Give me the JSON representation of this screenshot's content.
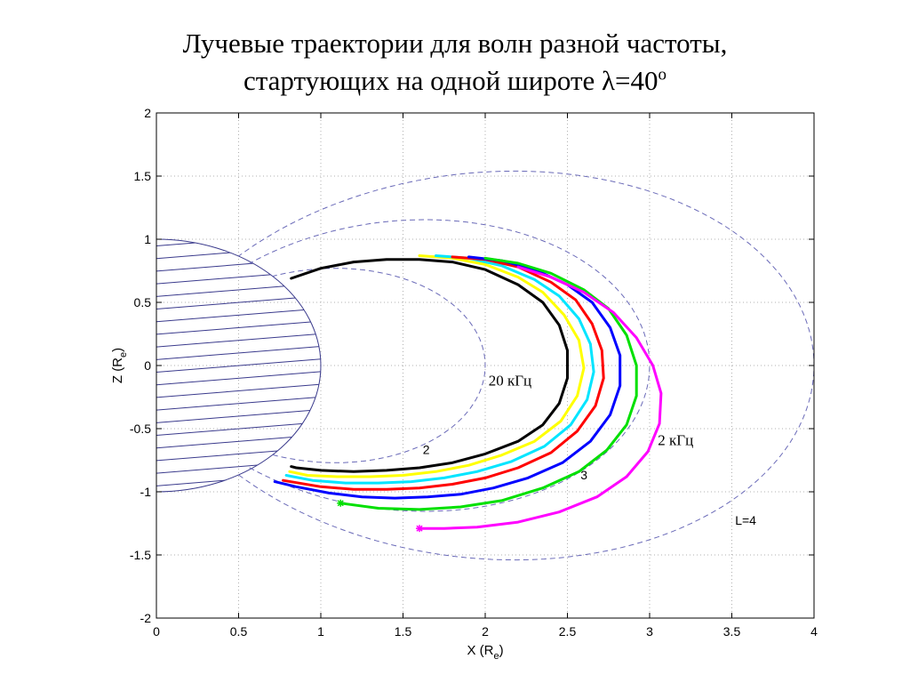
{
  "title": {
    "line1": "Лучевые траектории для волн разной частоты,",
    "line2_prefix": "стартующих на одной широте ",
    "lambda": "λ",
    "line2_value": "=40",
    "degree": "о"
  },
  "chart_data": {
    "type": "line",
    "xlabel": "X (R",
    "xlabel_sub": "e",
    "xlabel_close": ")",
    "ylabel": "Z (R",
    "ylabel_sub": "e",
    "ylabel_close": ")",
    "xlim": [
      0,
      4
    ],
    "ylim": [
      -2,
      2
    ],
    "xticks": [
      0,
      0.5,
      1,
      1.5,
      2,
      2.5,
      3,
      3.5,
      4
    ],
    "yticks": [
      -2,
      -1.5,
      -1,
      -0.5,
      0,
      0.5,
      1,
      1.5,
      2
    ],
    "xtick_labels": [
      "0",
      "0.5",
      "1",
      "1.5",
      "2",
      "2.5",
      "3",
      "3.5",
      "4"
    ],
    "ytick_labels": [
      "-2",
      "-1.5",
      "-1",
      "-0.5",
      "0",
      "0.5",
      "1",
      "1.5",
      "2"
    ],
    "grid": true,
    "colors": {
      "field_line": "#6a6ab8",
      "earth": "#3a3a8c"
    },
    "field_lines": [
      {
        "L": 2,
        "label": "2",
        "label_x": 1.62,
        "label_y": -0.7
      },
      {
        "L": 3,
        "label": "3",
        "label_x": 2.58,
        "label_y": -0.9
      },
      {
        "L": 4,
        "label": "L=4",
        "label_x": 3.52,
        "label_y": -1.26
      }
    ],
    "series": [
      {
        "color": "#000000",
        "x": [
          0.82,
          1.0,
          1.2,
          1.4,
          1.6,
          1.8,
          2.0,
          2.2,
          2.35,
          2.45,
          2.5,
          2.5,
          2.45,
          2.35,
          2.2,
          2.0,
          1.8,
          1.6,
          1.4,
          1.2,
          1.0,
          0.85,
          0.82
        ],
        "y": [
          0.69,
          0.77,
          0.82,
          0.84,
          0.84,
          0.82,
          0.76,
          0.64,
          0.5,
          0.32,
          0.12,
          -0.1,
          -0.3,
          -0.47,
          -0.6,
          -0.7,
          -0.77,
          -0.81,
          -0.83,
          -0.84,
          -0.83,
          -0.81,
          -0.8
        ]
      },
      {
        "color": "#ffff00",
        "x": [
          1.6,
          1.8,
          2.0,
          2.2,
          2.35,
          2.48,
          2.57,
          2.6,
          2.56,
          2.46,
          2.3,
          2.1,
          1.9,
          1.7,
          1.5,
          1.3,
          1.1,
          0.92,
          0.81
        ],
        "y": [
          0.87,
          0.85,
          0.8,
          0.7,
          0.58,
          0.4,
          0.2,
          -0.02,
          -0.24,
          -0.44,
          -0.6,
          -0.71,
          -0.79,
          -0.84,
          -0.87,
          -0.88,
          -0.88,
          -0.87,
          -0.84
        ]
      },
      {
        "color": "#00e5ff",
        "x": [
          1.7,
          1.9,
          2.1,
          2.3,
          2.45,
          2.57,
          2.64,
          2.66,
          2.62,
          2.52,
          2.36,
          2.16,
          1.95,
          1.75,
          1.55,
          1.35,
          1.15,
          0.95,
          0.79
        ],
        "y": [
          0.87,
          0.85,
          0.79,
          0.68,
          0.55,
          0.37,
          0.17,
          -0.05,
          -0.27,
          -0.47,
          -0.64,
          -0.76,
          -0.84,
          -0.89,
          -0.92,
          -0.93,
          -0.93,
          -0.91,
          -0.87
        ]
      },
      {
        "color": "#ff0000",
        "x": [
          1.8,
          2.0,
          2.2,
          2.4,
          2.55,
          2.65,
          2.71,
          2.72,
          2.67,
          2.56,
          2.4,
          2.2,
          2.0,
          1.8,
          1.6,
          1.4,
          1.2,
          1.0,
          0.77
        ],
        "y": [
          0.86,
          0.84,
          0.78,
          0.66,
          0.52,
          0.33,
          0.12,
          -0.1,
          -0.32,
          -0.52,
          -0.69,
          -0.81,
          -0.89,
          -0.94,
          -0.97,
          -0.98,
          -0.98,
          -0.96,
          -0.91
        ]
      },
      {
        "color": "#0000ff",
        "x": [
          1.9,
          2.1,
          2.3,
          2.5,
          2.65,
          2.76,
          2.82,
          2.82,
          2.76,
          2.64,
          2.47,
          2.26,
          2.05,
          1.85,
          1.65,
          1.45,
          1.25,
          1.05,
          0.85,
          0.72
        ],
        "y": [
          0.86,
          0.83,
          0.76,
          0.64,
          0.5,
          0.3,
          0.08,
          -0.16,
          -0.39,
          -0.6,
          -0.77,
          -0.89,
          -0.97,
          -1.02,
          -1.04,
          -1.05,
          -1.04,
          -1.01,
          -0.96,
          -0.92
        ]
      },
      {
        "color": "#00e000",
        "x": [
          2.0,
          2.2,
          2.4,
          2.6,
          2.75,
          2.86,
          2.92,
          2.92,
          2.86,
          2.74,
          2.57,
          2.35,
          2.1,
          1.85,
          1.6,
          1.35,
          1.12
        ],
        "y": [
          0.85,
          0.81,
          0.73,
          0.6,
          0.45,
          0.24,
          0.0,
          -0.24,
          -0.47,
          -0.67,
          -0.84,
          -0.97,
          -1.07,
          -1.12,
          -1.14,
          -1.13,
          -1.09
        ]
      },
      {
        "color": "#ff00ff",
        "x": [
          2.2,
          2.4,
          2.6,
          2.78,
          2.92,
          3.02,
          3.07,
          3.06,
          2.99,
          2.86,
          2.68,
          2.45,
          2.2,
          1.95,
          1.75,
          1.6
        ],
        "y": [
          0.78,
          0.7,
          0.58,
          0.42,
          0.22,
          0.0,
          -0.22,
          -0.46,
          -0.68,
          -0.88,
          -1.04,
          -1.16,
          -1.24,
          -1.28,
          -1.29,
          -1.29
        ]
      }
    ],
    "annotations": [
      {
        "text": "20 кГц",
        "x": 2.02,
        "y": -0.16,
        "style": "serif"
      },
      {
        "text": "2 кГц",
        "x": 3.05,
        "y": -0.63,
        "style": "serif"
      }
    ]
  }
}
